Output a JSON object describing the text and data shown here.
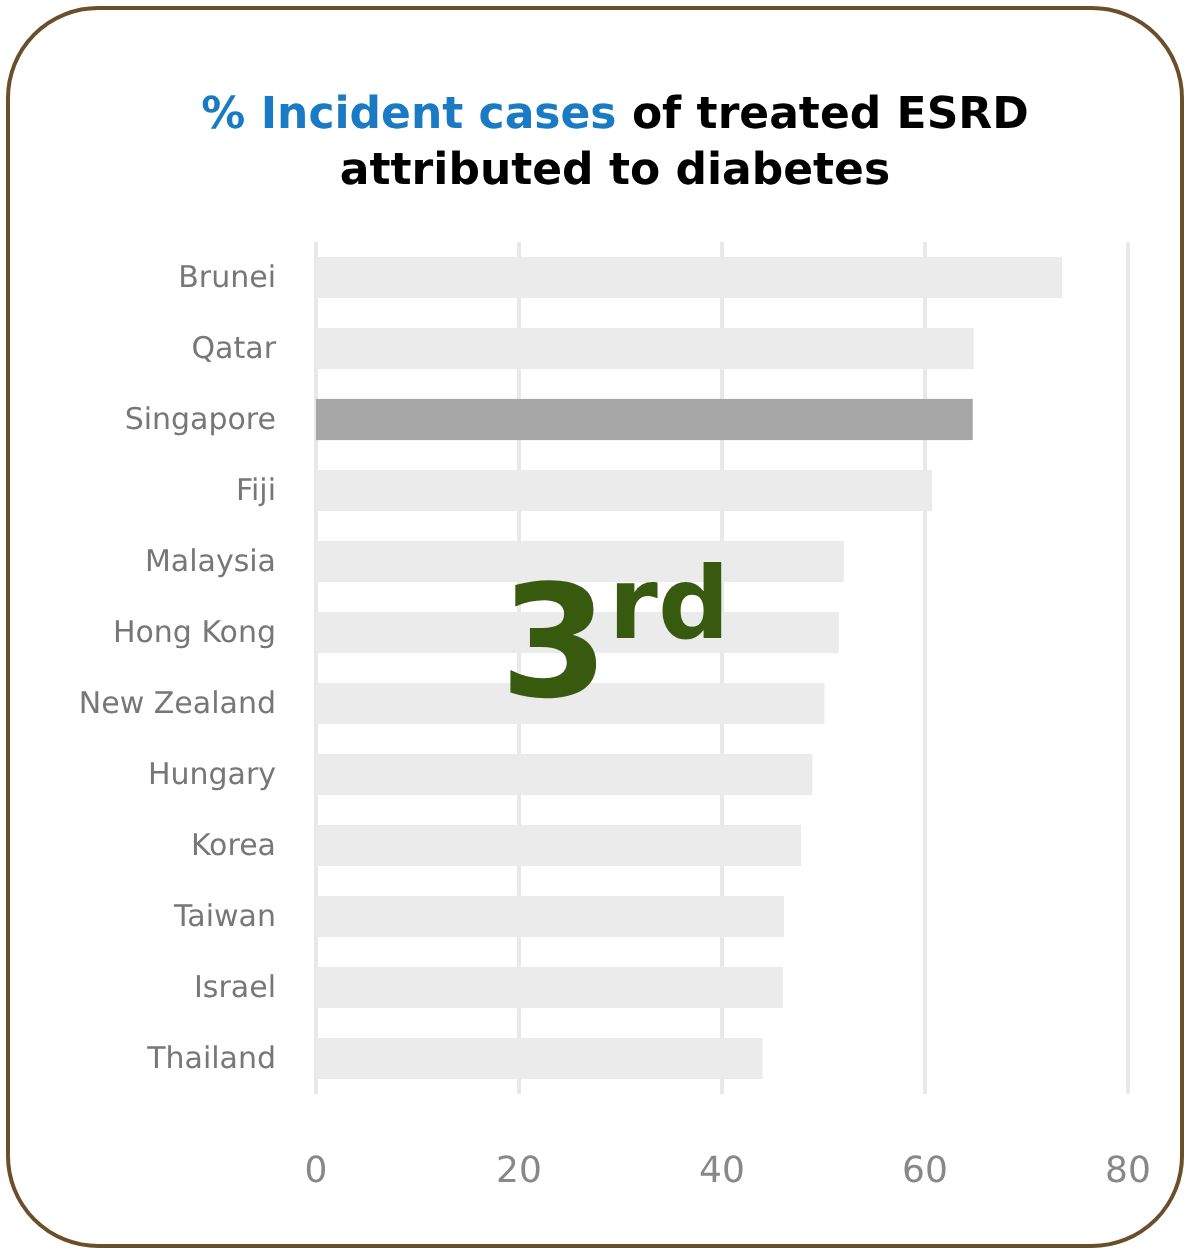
{
  "chart_data": {
    "type": "bar",
    "orientation": "horizontal",
    "title": "% Incident cases of treated ESRD attributed to diabetes",
    "categories": [
      "Brunei",
      "Qatar",
      "Singapore",
      "Fiji",
      "Malaysia",
      "Hong Kong",
      "New Zealand",
      "Hungary",
      "Korea",
      "Taiwan",
      "Israel",
      "Thailand"
    ],
    "values": [
      73.5,
      64.8,
      64.7,
      60.7,
      52.0,
      51.5,
      50.1,
      48.9,
      47.8,
      46.1,
      46.0,
      44.0
    ],
    "colors": [
      "#ebebeb",
      "#ebebeb",
      "#a6a6a6",
      "#ebebeb",
      "#ebebeb",
      "#ebebeb",
      "#ebebeb",
      "#ebebeb",
      "#ebebeb",
      "#ebebeb",
      "#ebebeb",
      "#ebebeb"
    ],
    "xlim": [
      0,
      80
    ],
    "xticks": [
      0,
      20,
      40,
      60,
      80
    ],
    "grid": "x",
    "annotations": [
      "3$^{rd}$"
    ]
  }
}
